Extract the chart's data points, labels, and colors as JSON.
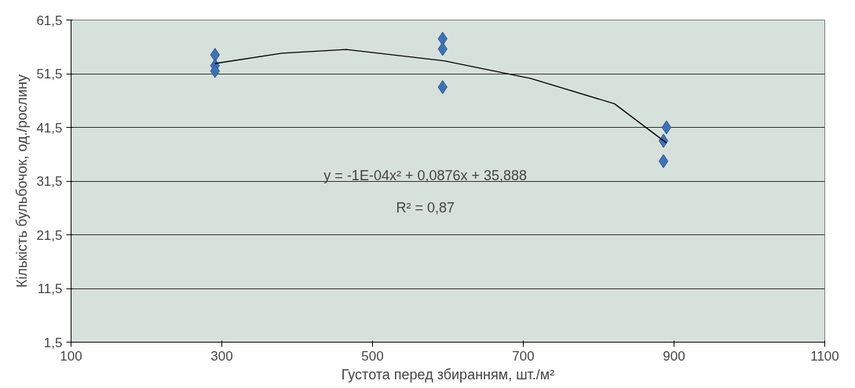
{
  "chart_data": {
    "type": "scatter",
    "xlabel": "Густота перед збиранням, шт./м²",
    "ylabel": "Кількість бульбочок, од./рослину",
    "xlim": [
      100,
      1100
    ],
    "xticks": [
      100,
      300,
      500,
      700,
      900,
      1100
    ],
    "ylim": [
      1.5,
      61.5
    ],
    "yticks": [
      {
        "value": 1.5,
        "label": "1,5"
      },
      {
        "value": 11.5,
        "label": "11,5"
      },
      {
        "value": 21.5,
        "label": "21,5"
      },
      {
        "value": 31.5,
        "label": "31,5"
      },
      {
        "value": 41.5,
        "label": "41,5"
      },
      {
        "value": 51.5,
        "label": "51,5"
      },
      {
        "value": 61.5,
        "label": "61,5"
      }
    ],
    "grid": "y",
    "series": [
      {
        "marker": "diamond",
        "color": "#3f72b5",
        "x": [
          291,
          291,
          291,
          593,
          593,
          593,
          890,
          886,
          886
        ],
        "values": [
          55.0,
          53.0,
          52.0,
          58.0,
          56.1,
          49.0,
          41.5,
          39.0,
          35.2
        ]
      },
      {
        "type": "line",
        "marker": "none",
        "color": "#000000",
        "x": [
          291,
          380,
          465,
          595,
          710,
          821,
          890
        ],
        "values": [
          53.4,
          55.3,
          56.0,
          53.9,
          50.6,
          45.9,
          38.6
        ]
      }
    ],
    "annotations": [
      "y = -1E-04x² + 0,0876x + 35,888",
      "R² = 0,87"
    ]
  }
}
